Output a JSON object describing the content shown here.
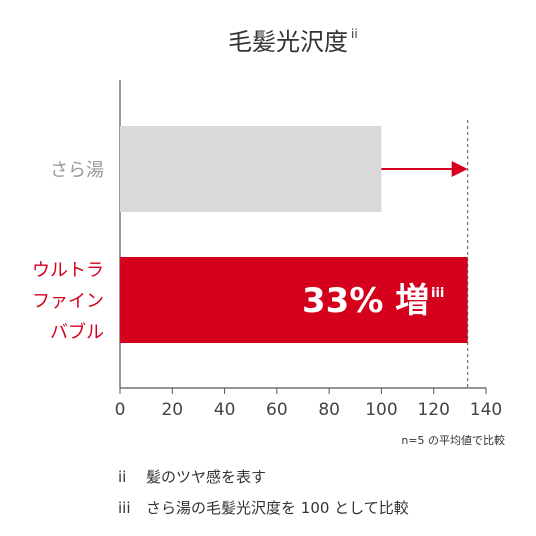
{
  "chart_data": {
    "type": "bar",
    "orientation": "horizontal",
    "title": "毛髪光沢度",
    "title_superscript": "ii",
    "categories": [
      "さら湯",
      "ウルトラ\nファイン\nバブル"
    ],
    "category_lines": [
      [
        "さら湯"
      ],
      [
        "ウルトラ",
        "ファイン",
        "バブル"
      ]
    ],
    "values": [
      100,
      133
    ],
    "bar_colors": [
      "#d9d9d9",
      "#d5001c"
    ],
    "category_label_colors": [
      "#999999",
      "#d5001c"
    ],
    "xlim": [
      0,
      140
    ],
    "xticks": [
      0,
      20,
      40,
      60,
      80,
      100,
      120,
      140
    ],
    "xtick_labels": [
      "0",
      "20",
      "40",
      "60",
      "80",
      "100",
      "120",
      "140"
    ],
    "grid": false,
    "bar_annotation": {
      "text": "33% 増",
      "superscript": "iii",
      "bar_index": 1
    },
    "arrow": {
      "from": 100,
      "to": 133,
      "color": "#d5001c"
    },
    "reference_line": {
      "value": 133,
      "style": "dashed"
    },
    "note": "n=5 の平均値で比較",
    "footnotes": [
      {
        "marker": "ii",
        "text": "髪のツヤ感を表す"
      },
      {
        "marker": "iii",
        "text": "さら湯の毛髪光沢度を 100 として比較"
      }
    ]
  }
}
